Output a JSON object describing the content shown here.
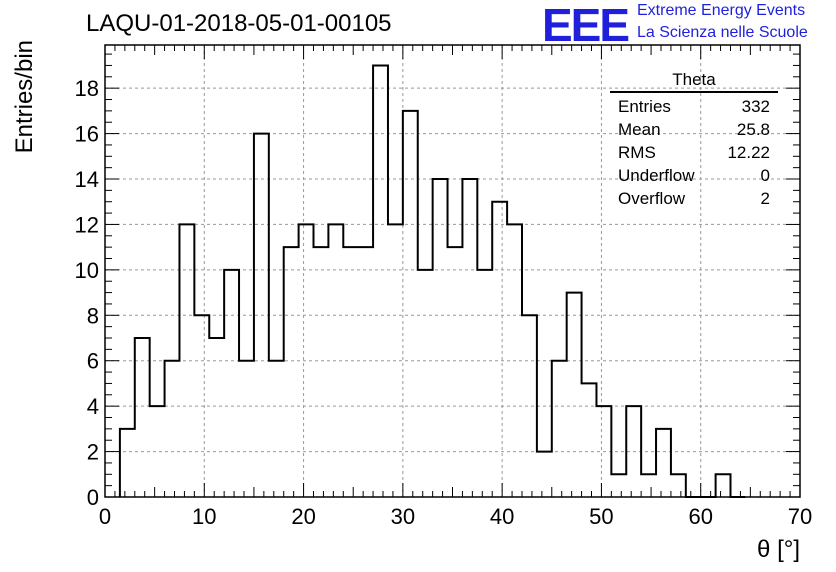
{
  "header": {
    "title": "LAQU-01-2018-05-01-00105"
  },
  "logo": {
    "mark": "EEE",
    "line1": "Extreme Energy Events",
    "line2": "La Scienza nelle Scuole",
    "color": "#1f1fdc"
  },
  "stats_box": {
    "title": "Theta",
    "rows": [
      {
        "label": "Entries",
        "value": "332"
      },
      {
        "label": "Mean",
        "value": "25.8"
      },
      {
        "label": "RMS",
        "value": "12.22"
      },
      {
        "label": "Underflow",
        "value": "0"
      },
      {
        "label": "Overflow",
        "value": "2"
      }
    ]
  },
  "chart_data": {
    "type": "bar",
    "style": "histogram-step",
    "xlabel": "θ [°]",
    "ylabel": "Entries/bin",
    "xlim": [
      0,
      70
    ],
    "ylim": [
      0,
      19.9
    ],
    "x_ticks": [
      0,
      10,
      20,
      30,
      40,
      50,
      60,
      70
    ],
    "y_ticks": [
      0,
      2,
      4,
      6,
      8,
      10,
      12,
      14,
      16,
      18
    ],
    "grid": true,
    "line_color": "#000000",
    "bin_width": 1.5,
    "bin_edges_start": 1.5,
    "values": [
      3,
      7,
      4,
      6,
      12,
      8,
      7,
      10,
      6,
      16,
      6,
      11,
      12,
      11,
      12,
      11,
      11,
      19,
      12,
      17,
      10,
      14,
      11,
      14,
      10,
      13,
      12,
      8,
      2,
      6,
      9,
      5,
      4,
      1,
      4,
      1,
      3,
      1,
      0,
      0,
      1,
      0
    ]
  }
}
